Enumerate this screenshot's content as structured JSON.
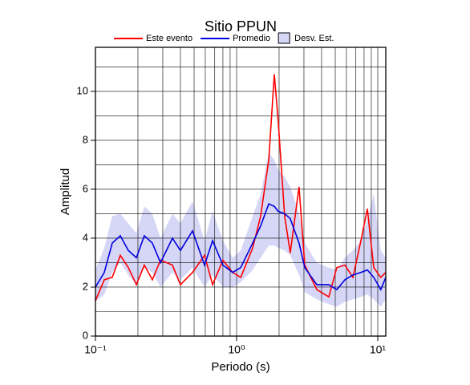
{
  "chart_data": {
    "type": "line",
    "title": "Sitio PPUN",
    "x_label": "Periodo (s)",
    "y_label": "Amplitud",
    "log_x": true,
    "grid": true,
    "legend": "top",
    "xlim": [
      0.1,
      11.4
    ],
    "ylim": [
      0,
      11.8
    ],
    "xticks": [
      {
        "value": 0.1,
        "label": "10⁻¹"
      },
      {
        "value": 1,
        "label": "10⁰"
      },
      {
        "value": 10,
        "label": "10¹"
      }
    ],
    "yticks": [
      0,
      2,
      4,
      6,
      8,
      10
    ],
    "x_grid": [
      0.2,
      0.3,
      0.4,
      0.5,
      0.6,
      0.7,
      0.8,
      0.9,
      1,
      2,
      3,
      4,
      5,
      6,
      7,
      8,
      9,
      10
    ],
    "y_grid": [
      1,
      2,
      3,
      4,
      5,
      6,
      7,
      8,
      9,
      10,
      11
    ],
    "x": [
      0.1,
      0.1155,
      0.1316,
      0.15,
      0.171,
      0.195,
      0.222,
      0.253,
      0.289,
      0.351,
      0.4,
      0.487,
      0.593,
      0.676,
      0.8,
      0.937,
      1.07,
      1.3,
      1.48,
      1.69,
      1.85,
      1.97,
      2.19,
      2.4,
      2.77,
      3.04,
      3.7,
      4.5,
      5.13,
      5.85,
      6.67,
      7.6,
      8.44,
      9.37,
      10.5,
      11.4
    ],
    "band": {
      "name": "Desv. Est.",
      "color": "#d6d6f7",
      "lower": [
        1.4,
        1.7,
        2.6,
        3.0,
        2.5,
        2.1,
        2.8,
        2.6,
        2.0,
        2.6,
        2.3,
        2.8,
        2.0,
        2.5,
        2.0,
        2.0,
        2.2,
        2.7,
        3.2,
        3.7,
        3.7,
        3.6,
        3.5,
        3.3,
        2.5,
        1.8,
        1.5,
        1.3,
        1.2,
        1.4,
        1.5,
        1.6,
        1.7,
        1.5,
        1.2,
        1.5
      ],
      "upper": [
        2.7,
        3.6,
        4.9,
        5.0,
        4.6,
        4.2,
        5.3,
        5.0,
        4.0,
        5.0,
        4.6,
        5.5,
        3.9,
        5.1,
        3.9,
        3.2,
        3.5,
        4.9,
        5.8,
        7.5,
        7.2,
        6.8,
        6.5,
        6.1,
        5.0,
        3.8,
        3.0,
        2.8,
        2.7,
        3.2,
        3.5,
        3.9,
        4.8,
        5.8,
        3.5,
        3.2
      ]
    },
    "series": [
      {
        "name": "Este evento",
        "color": "#ff0000",
        "values": [
          1.45,
          2.3,
          2.4,
          3.3,
          2.8,
          2.1,
          2.9,
          2.3,
          3.1,
          2.9,
          2.1,
          2.6,
          3.3,
          2.1,
          3.1,
          2.6,
          2.4,
          3.6,
          4.9,
          7.2,
          10.7,
          8.8,
          4.9,
          3.4,
          6.1,
          2.9,
          1.9,
          1.6,
          2.8,
          2.9,
          2.4,
          3.9,
          5.2,
          2.8,
          2.4,
          2.6
        ]
      },
      {
        "name": "Promedio",
        "color": "#0000dd",
        "values": [
          2.0,
          2.6,
          3.8,
          4.1,
          3.5,
          3.2,
          4.1,
          3.8,
          3.0,
          4.0,
          3.5,
          4.3,
          2.9,
          3.9,
          2.9,
          2.6,
          2.8,
          3.8,
          4.5,
          5.4,
          5.3,
          5.1,
          5.0,
          4.8,
          3.8,
          2.8,
          2.1,
          2.1,
          1.9,
          2.3,
          2.5,
          2.6,
          2.7,
          2.4,
          1.9,
          2.4
        ]
      }
    ]
  }
}
